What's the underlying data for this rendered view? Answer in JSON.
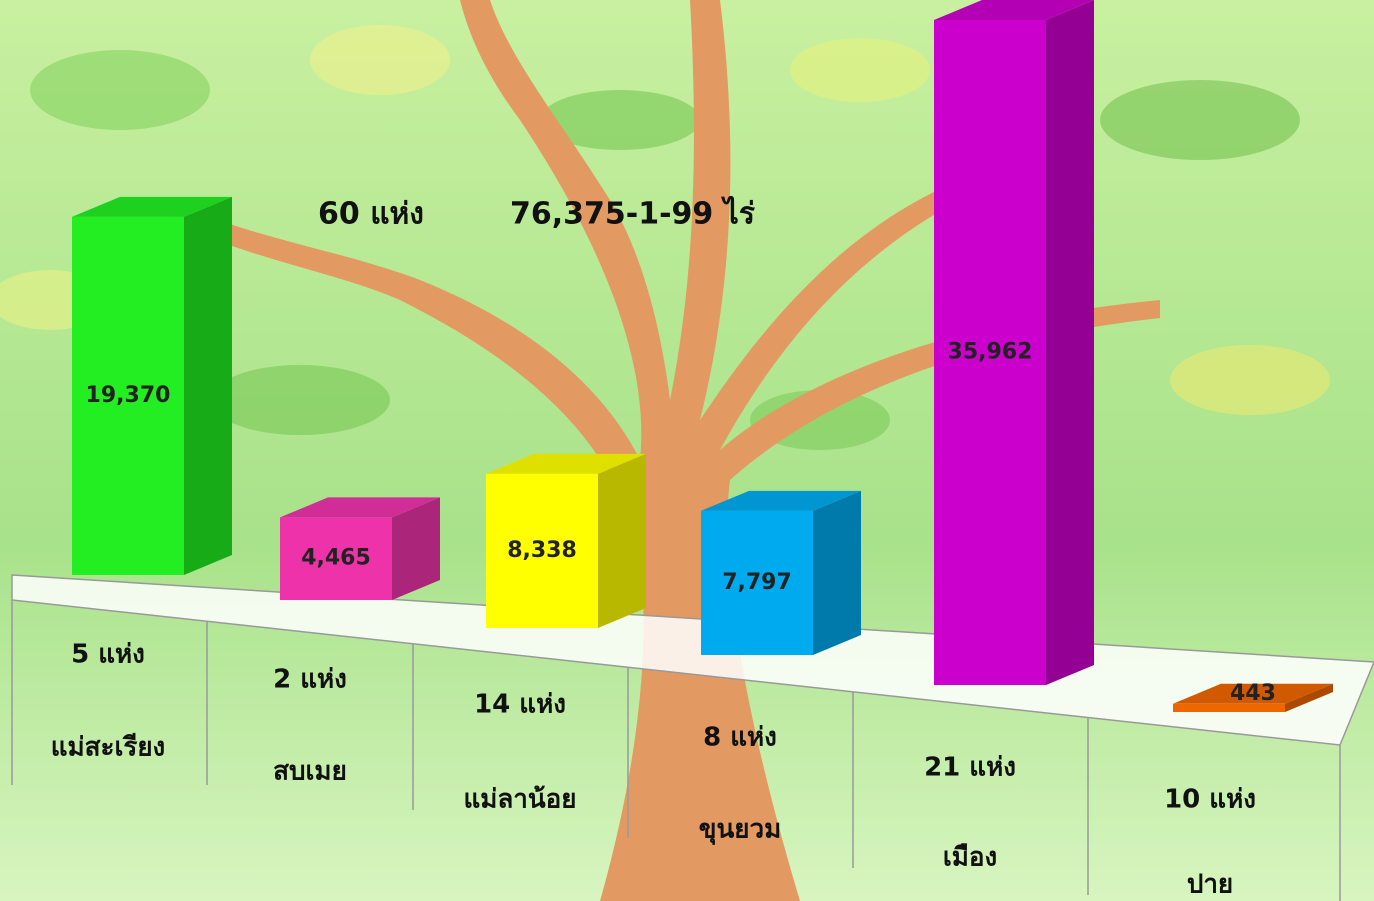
{
  "chart_data": {
    "type": "bar",
    "annotations": [
      "60 แห่ง",
      "76,375-1-99 ไร่"
    ],
    "categories": [
      "แม่สะเรียง",
      "สบเมย",
      "แม่ลาน้อย",
      "ขุนยวม",
      "เมือง",
      "ปาย"
    ],
    "site_counts": [
      "5 แห่ง",
      "2 แห่ง",
      "14 แห่ง",
      "8 แห่ง",
      "21 แห่ง",
      "10 แห่ง"
    ],
    "values": [
      19370,
      4465,
      8338,
      7797,
      35962,
      443
    ],
    "value_labels": [
      "19,370",
      "4,465",
      "8,338",
      "7,797",
      "35,962",
      "443"
    ],
    "colors": [
      "#22ee22",
      "#ee33aa",
      "#ffff00",
      "#00aaee",
      "#cc00cc",
      "#ee6600"
    ]
  }
}
